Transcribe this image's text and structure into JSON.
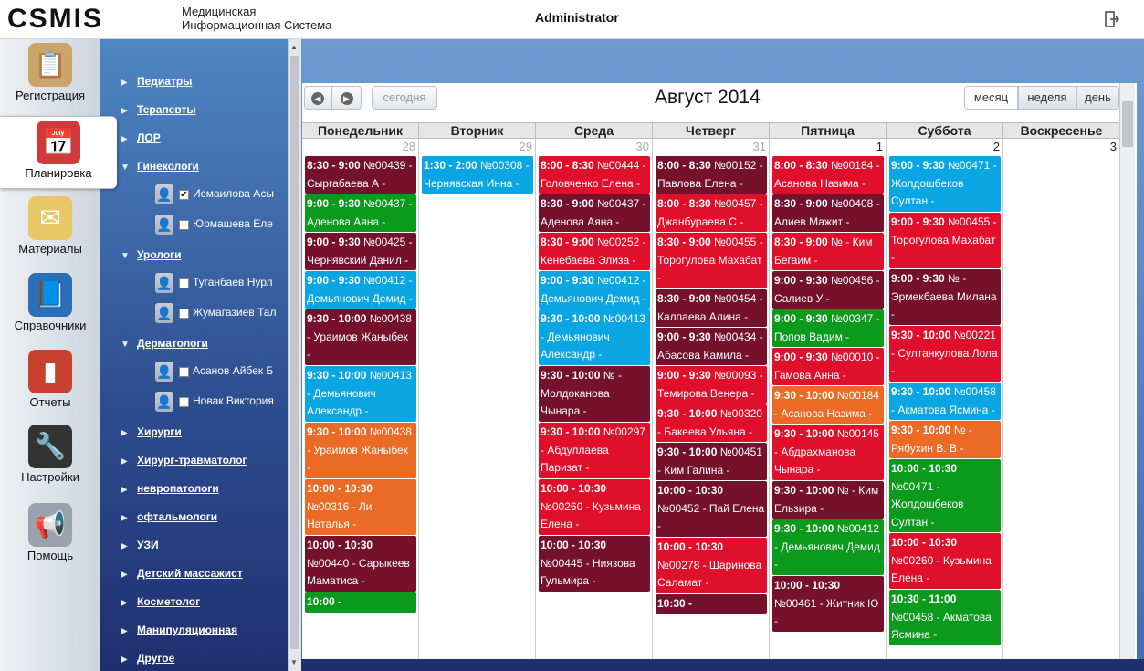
{
  "header": {
    "logo": "CSMIS",
    "subtitle_line1": "Медицинская",
    "subtitle_line2": "Информационная Система",
    "user": "Administrator",
    "logout_icon": "logout-icon"
  },
  "leftnav": [
    {
      "label": "Регистрация",
      "icon": "clipboard-icon",
      "color": "#c9a56a"
    },
    {
      "label": "Планировка",
      "icon": "calendar-clock-icon",
      "color": "#d03a3a"
    },
    {
      "label": "Материалы",
      "icon": "envelope-icon",
      "color": "#e8c866"
    },
    {
      "label": "Справочники",
      "icon": "book-icon",
      "color": "#2a6fb8"
    },
    {
      "label": "Отчеты",
      "icon": "bar-chart-icon",
      "color": "#c8402e"
    },
    {
      "label": "Настройки",
      "icon": "wrench-icon",
      "color": "#333333"
    },
    {
      "label": "Помощь",
      "icon": "megaphone-icon",
      "color": "#9aa3ad"
    }
  ],
  "sidebar": {
    "groups": [
      {
        "name": "Педиатры",
        "expanded": false
      },
      {
        "name": "Терапевты",
        "expanded": false
      },
      {
        "name": "ЛОР",
        "expanded": false
      },
      {
        "name": "Гинекологи",
        "expanded": true,
        "doctors": [
          {
            "name": "Исмаилова Асы",
            "checked": true
          },
          {
            "name": "Юрмашева Еле",
            "checked": false
          }
        ]
      },
      {
        "name": "Урологи",
        "expanded": true,
        "doctors": [
          {
            "name": "Туганбаев Нурл",
            "checked": false
          },
          {
            "name": "Жумагазиев Тал",
            "checked": false
          }
        ]
      },
      {
        "name": "Дерматологи",
        "expanded": true,
        "doctors": [
          {
            "name": "Асанов Айбек Б",
            "checked": false
          },
          {
            "name": "Новак Виктория",
            "checked": false
          }
        ]
      },
      {
        "name": "Хирурги",
        "expanded": false
      },
      {
        "name": "Хирург-травматолог",
        "expanded": false
      },
      {
        "name": "невропатологи",
        "expanded": false
      },
      {
        "name": "офтальмологи",
        "expanded": false
      },
      {
        "name": "УЗИ",
        "expanded": false
      },
      {
        "name": "Детский массажист",
        "expanded": false
      },
      {
        "name": "Косметолог",
        "expanded": false
      },
      {
        "name": "Манипуляционная",
        "expanded": false
      },
      {
        "name": "Другое",
        "expanded": false
      }
    ]
  },
  "calendar": {
    "title": "Август 2014",
    "today_label": "сегодня",
    "prev_icon": "chevron-left-icon",
    "next_icon": "chevron-right-icon",
    "views": [
      "месяц",
      "неделя",
      "день"
    ],
    "active_view": "месяц",
    "day_names": [
      "Понедельник",
      "Вторник",
      "Среда",
      "Четверг",
      "Пятница",
      "Суббота",
      "Воскресенье"
    ],
    "days": [
      {
        "num": "28",
        "current": false,
        "events": [
          {
            "time": "8:30 - 9:00",
            "text": "№00439 - Сыргабаева А -",
            "color": "maroon"
          },
          {
            "time": "9:00 - 9:30",
            "text": "№00437 - Аденова Аяна -",
            "color": "green"
          },
          {
            "time": "9:00 - 9:30",
            "text": "№00425 - Чернявский Данил -",
            "color": "maroon"
          },
          {
            "time": "9:00 - 9:30",
            "text": "№00412 - Демьянович Демид -",
            "color": "cyan"
          },
          {
            "time": "9:30 - 10:00",
            "text": "№00438 - Ураимов Жаныбек -",
            "color": "maroon"
          },
          {
            "time": "9:30 - 10:00",
            "text": "№00413 - Демьянович Александр -",
            "color": "cyan"
          },
          {
            "time": "9:30 - 10:00",
            "text": "№00438 - Ураимов Жаныбек -",
            "color": "orange"
          },
          {
            "time": "10:00 - 10:30",
            "text": "№00316 - Ли Наталья -",
            "color": "orange"
          },
          {
            "time": "10:00 - 10:30",
            "text": "№00440 - Сарыкеев Маматиса -",
            "color": "maroon"
          },
          {
            "time": "10:00 -",
            "text": "",
            "color": "green"
          }
        ]
      },
      {
        "num": "29",
        "current": false,
        "events": [
          {
            "time": "1:30 - 2:00",
            "text": "№00308 - Чернявская Инна -",
            "color": "cyan"
          }
        ]
      },
      {
        "num": "30",
        "current": false,
        "events": [
          {
            "time": "8:00 - 8:30",
            "text": "№00444 - Головченко Елена -",
            "color": "red"
          },
          {
            "time": "8:30 - 9:00",
            "text": "№00437 - Аденова Аяна -",
            "color": "maroon"
          },
          {
            "time": "8:30 - 9:00",
            "text": "№00252 - Кенебаева Элиза -",
            "color": "red"
          },
          {
            "time": "9:00 - 9:30",
            "text": "№00412 - Демьянович Демид -",
            "color": "cyan"
          },
          {
            "time": "9:30 - 10:00",
            "text": "№00413 - Демьянович Александр -",
            "color": "cyan"
          },
          {
            "time": "9:30 - 10:00",
            "text": "№ - Молдоканова Чынара -",
            "color": "maroon"
          },
          {
            "time": "9:30 - 10:00",
            "text": "№00297 - Абдуллаева Паризат -",
            "color": "red"
          },
          {
            "time": "10:00 - 10:30",
            "text": "№00260 - Кузьмина Елена -",
            "color": "red"
          },
          {
            "time": "10:00 - 10:30",
            "text": "№00445 - Ниязова Гульмира -",
            "color": "maroon"
          }
        ]
      },
      {
        "num": "31",
        "current": false,
        "events": [
          {
            "time": "8:00 - 8:30",
            "text": "№00152 - Павлова Елена -",
            "color": "maroon"
          },
          {
            "time": "8:00 - 8:30",
            "text": "№00457 - Джанбураева С -",
            "color": "red"
          },
          {
            "time": "8:30 - 9:00",
            "text": "№00455 - Торогулова Махабат -",
            "color": "red"
          },
          {
            "time": "8:30 - 9:00",
            "text": "№00454 - Калпаева Алина -",
            "color": "maroon"
          },
          {
            "time": "9:00 - 9:30",
            "text": "№00434 - Абасова Камила -",
            "color": "maroon"
          },
          {
            "time": "9:00 - 9:30",
            "text": "№00093 - Темирова Венера -",
            "color": "red"
          },
          {
            "time": "9:30 - 10:00",
            "text": "№00320 - Бакеева Ульяна -",
            "color": "red"
          },
          {
            "time": "9:30 - 10:00",
            "text": "№00451 - Ким Галина -",
            "color": "maroon"
          },
          {
            "time": "10:00 - 10:30",
            "text": "№00452 - Пай Елена -",
            "color": "maroon"
          },
          {
            "time": "10:00 - 10:30",
            "text": "№00278 - Шаринова Саламат -",
            "color": "red"
          },
          {
            "time": "10:30 -",
            "text": "",
            "color": "maroon"
          }
        ]
      },
      {
        "num": "1",
        "current": true,
        "events": [
          {
            "time": "8:00 - 8:30",
            "text": "№00184 - Асанова Назима -",
            "color": "red"
          },
          {
            "time": "8:30 - 9:00",
            "text": "№00408 - Алиев Мажит -",
            "color": "maroon"
          },
          {
            "time": "8:30 - 9:00",
            "text": "№ - Ким Бегаим -",
            "color": "red"
          },
          {
            "time": "9:00 - 9:30",
            "text": "№00456 - Салиев У -",
            "color": "maroon"
          },
          {
            "time": "9:00 - 9:30",
            "text": "№00347 - Попов Вадим -",
            "color": "green"
          },
          {
            "time": "9:00 - 9:30",
            "text": "№00010 - Гамова Анна -",
            "color": "red"
          },
          {
            "time": "9:30 - 10:00",
            "text": "№00184 - Асанова Назима -",
            "color": "orange"
          },
          {
            "time": "9:30 - 10:00",
            "text": "№00145 - Абдрахманова Чынара -",
            "color": "red"
          },
          {
            "time": "9:30 - 10:00",
            "text": "№ - Ким Ельзира -",
            "color": "maroon"
          },
          {
            "time": "9:30 - 10:00",
            "text": "№00412 - Демьянович Демид -",
            "color": "green"
          },
          {
            "time": "10:00 - 10:30",
            "text": "№00461 - Житник Ю -",
            "color": "maroon"
          }
        ]
      },
      {
        "num": "2",
        "current": true,
        "events": [
          {
            "time": "9:00 - 9:30",
            "text": "№00471 - Жолдошбеков Султан -",
            "color": "cyan"
          },
          {
            "time": "9:00 - 9:30",
            "text": "№00455 - Торогулова Махабат -",
            "color": "red"
          },
          {
            "time": "9:00 - 9:30",
            "text": "№ - Эрмекбаева Милана -",
            "color": "maroon"
          },
          {
            "time": "9:30 - 10:00",
            "text": "№00221 - Султанкулова Лола -",
            "color": "red"
          },
          {
            "time": "9:30 - 10:00",
            "text": "№00458 - Акматова Ясмина -",
            "color": "cyan"
          },
          {
            "time": "9:30 - 10:00",
            "text": "№ - Рябухин В. В -",
            "color": "orange"
          },
          {
            "time": "10:00 - 10:30",
            "text": "№00471 - Жолдошбеков Султан -",
            "color": "green"
          },
          {
            "time": "10:00 - 10:30",
            "text": "№00260 - Кузьмина Елена -",
            "color": "red"
          },
          {
            "time": "10:30 - 11:00",
            "text": "№00458 - Акматова Ясмина -",
            "color": "green"
          }
        ]
      },
      {
        "num": "3",
        "current": true,
        "events": []
      }
    ]
  },
  "colors": {
    "red": "#e0102c",
    "maroon": "#75102d",
    "green": "#0b9a1c",
    "cyan": "#0aa6e3",
    "orange": "#ea6a26"
  }
}
